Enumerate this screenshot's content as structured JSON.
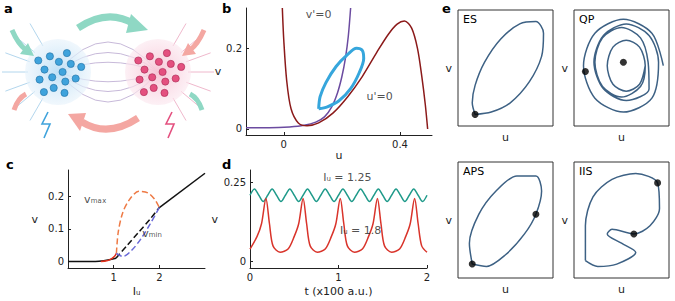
{
  "diagram": {
    "panel_label": "a"
  },
  "chart_data": [
    {
      "panel_label": "b",
      "type": "line",
      "x_label": "u",
      "y_label": "v",
      "xlim": [
        -0.13,
        0.51
      ],
      "xticks": [
        0,
        0.4
      ],
      "ylim": [
        -0.015,
        0.3
      ],
      "yticks": [
        0,
        0.2
      ],
      "series": [
        {
          "color": "#6b4ba0",
          "line_style": "solid",
          "x": [
            -0.13,
            -0.05,
            0.02,
            0.07,
            0.11,
            0.14,
            0.165,
            0.185,
            0.2,
            0.212,
            0.222,
            0.23
          ],
          "values": [
            0.003,
            0.003,
            0.005,
            0.009,
            0.017,
            0.03,
            0.055,
            0.09,
            0.13,
            0.175,
            0.23,
            0.3
          ]
        },
        {
          "color": "#8b1a1a",
          "line_style": "solid",
          "x": [
            -0.005,
            0.0,
            0.01,
            0.025,
            0.05,
            0.08,
            0.12,
            0.17,
            0.22,
            0.27,
            0.32,
            0.36,
            0.39,
            0.415,
            0.44,
            0.46,
            0.475,
            0.487,
            0.495
          ],
          "values": [
            0.3,
            0.22,
            0.12,
            0.05,
            0.015,
            0.008,
            0.015,
            0.04,
            0.08,
            0.13,
            0.19,
            0.235,
            0.26,
            0.268,
            0.25,
            0.2,
            0.13,
            0.06,
            0.0
          ]
        },
        {
          "color": "#36a6dc",
          "line_style": "solid",
          "x": [
            0.12,
            0.15,
            0.19,
            0.23,
            0.26,
            0.275,
            0.27,
            0.25,
            0.22,
            0.18,
            0.145,
            0.125,
            0.12
          ],
          "values": [
            0.05,
            0.055,
            0.07,
            0.1,
            0.14,
            0.175,
            0.195,
            0.2,
            0.185,
            0.155,
            0.115,
            0.08,
            0.05
          ]
        }
      ],
      "annotations": [
        {
          "text": "v'=0",
          "x": 0.12,
          "y": 0.285
        },
        {
          "text": "u'=0",
          "x": 0.33,
          "y": 0.08
        }
      ]
    },
    {
      "panel_label": "c",
      "type": "line",
      "x_label": "Iᵤ",
      "y_label": "v",
      "xlim": [
        0,
        3
      ],
      "xticks": [
        1,
        2
      ],
      "ylim": [
        -0.02,
        0.28
      ],
      "yticks": [
        0,
        0.1,
        0.2
      ],
      "series": [
        {
          "color": "#111111",
          "line_style": "solid",
          "x": [
            0,
            0.6,
            1.05
          ],
          "values": [
            0,
            0,
            0.01
          ]
        },
        {
          "color": "#e2311d",
          "line_style": "solid",
          "x": [
            0.72,
            0.85,
            0.95,
            1.02,
            1.06
          ],
          "values": [
            0.0,
            0.002,
            0.008,
            0.016,
            0.025
          ]
        },
        {
          "color": "#111111",
          "line_style": "dashed",
          "x": [
            1.05,
            1.3,
            1.55,
            1.8,
            2.0
          ],
          "values": [
            0.01,
            0.05,
            0.09,
            0.13,
            0.165
          ]
        },
        {
          "color": "#111111",
          "line_style": "solid",
          "x": [
            2,
            3
          ],
          "values": [
            0.165,
            0.27
          ]
        },
        {
          "color": "#ee7a45",
          "line_style": "dashed",
          "x": [
            1.06,
            1.1,
            1.2,
            1.35,
            1.55,
            1.75,
            1.9,
            2.0
          ],
          "values": [
            0.025,
            0.09,
            0.15,
            0.19,
            0.215,
            0.21,
            0.19,
            0.165
          ]
        },
        {
          "color": "#6a6ad8",
          "line_style": "dashed",
          "x": [
            1.06,
            1.2,
            1.4,
            1.6,
            1.8,
            2.0
          ],
          "values": [
            0.025,
            0.015,
            0.035,
            0.07,
            0.115,
            0.165
          ]
        }
      ],
      "annotations": [
        {
          "text": "vₘₐₓ",
          "x": 0.6,
          "y": 0.19
        },
        {
          "text": "vₘᵢₙ",
          "x": 1.84,
          "y": 0.085
        }
      ]
    },
    {
      "panel_label": "d",
      "type": "line",
      "x_label": "t (x100 a.u.)",
      "y_label": "v",
      "xlim": [
        0,
        2
      ],
      "xticks": [
        0,
        1,
        2
      ],
      "ylim": [
        -0.02,
        0.29
      ],
      "yticks": [
        0,
        0.25
      ],
      "series": [
        {
          "color": "#1f9a8a",
          "line_style": "solid",
          "x": [
            0,
            0.05,
            0.1,
            0.15,
            0.2,
            0.25,
            0.3,
            0.35,
            0.4,
            0.45,
            0.5,
            0.55,
            0.6,
            0.65,
            0.7,
            0.75,
            0.8,
            0.85,
            0.9,
            0.95,
            1,
            1.05,
            1.1,
            1.15,
            1.2,
            1.25,
            1.3,
            1.35,
            1.4,
            1.45,
            1.5,
            1.55,
            1.6,
            1.65,
            1.7,
            1.75,
            1.8,
            1.85,
            1.9,
            1.95,
            2
          ],
          "values": [
            0.21,
            0.23,
            0.21,
            0.19,
            0.21,
            0.23,
            0.21,
            0.19,
            0.21,
            0.23,
            0.21,
            0.19,
            0.21,
            0.23,
            0.21,
            0.19,
            0.21,
            0.23,
            0.21,
            0.19,
            0.21,
            0.23,
            0.21,
            0.19,
            0.21,
            0.23,
            0.21,
            0.19,
            0.21,
            0.23,
            0.21,
            0.19,
            0.21,
            0.23,
            0.21,
            0.19,
            0.21,
            0.23,
            0.21,
            0.19,
            0.21
          ]
        },
        {
          "color": "#d9342b",
          "line_style": "solid",
          "x": [
            0,
            0.08,
            0.13,
            0.18,
            0.22,
            0.26,
            0.34,
            0.43,
            0.5,
            0.55,
            0.6,
            0.64,
            0.68,
            0.76,
            0.85,
            0.92,
            0.97,
            1.02,
            1.06,
            1.1,
            1.18,
            1.27,
            1.34,
            1.39,
            1.44,
            1.48,
            1.52,
            1.6,
            1.69,
            1.76,
            1.81,
            1.86,
            1.9,
            1.94,
            2
          ],
          "values": [
            0.04,
            0.08,
            0.12,
            0.2,
            0.12,
            0.05,
            0.03,
            0.04,
            0.08,
            0.12,
            0.2,
            0.12,
            0.05,
            0.03,
            0.04,
            0.08,
            0.12,
            0.2,
            0.12,
            0.05,
            0.03,
            0.04,
            0.08,
            0.12,
            0.2,
            0.12,
            0.05,
            0.03,
            0.04,
            0.08,
            0.12,
            0.2,
            0.12,
            0.05,
            0.03
          ]
        }
      ],
      "annotations": [
        {
          "text": "Iᵤ = 1.25",
          "x": 1.1,
          "y": 0.265
        },
        {
          "text": "Iᵤ = 1.8",
          "x": 1.25,
          "y": 0.1
        }
      ]
    },
    {
      "panel_label": "e",
      "title": "ES",
      "type": "line",
      "x_label": "u",
      "y_label": "v",
      "xlim": [
        0,
        1
      ],
      "ylim": [
        0,
        1
      ],
      "tick_labels": false,
      "series": [
        {
          "color": "#3d6184",
          "line_style": "solid",
          "x": [
            0.18,
            0.35,
            0.55,
            0.75,
            0.88,
            0.9,
            0.82,
            0.65,
            0.45,
            0.28,
            0.18,
            0.15,
            0.18
          ],
          "values": [
            0.1,
            0.12,
            0.2,
            0.38,
            0.6,
            0.8,
            0.9,
            0.88,
            0.75,
            0.55,
            0.35,
            0.2,
            0.1
          ]
        },
        {
          "type": "scatter",
          "color": "#000000",
          "marker": "circle",
          "x": [
            0.18
          ],
          "values": [
            0.1
          ]
        }
      ]
    },
    {
      "title": "QP",
      "type": "line",
      "x_label": "u",
      "y_label": "v",
      "xlim": [
        0,
        1
      ],
      "ylim": [
        0,
        1
      ],
      "tick_labels": false,
      "series": [
        {
          "color": "#3d6184",
          "line_style": "solid",
          "x": [
            0.94,
            0.82,
            0.52,
            0.22,
            0.1,
            0.22,
            0.52,
            0.82,
            0.89,
            0.79,
            0.55,
            0.31,
            0.21,
            0.31,
            0.55,
            0.79,
            0.78,
            0.7,
            0.5,
            0.3,
            0.22,
            0.3,
            0.5,
            0.7,
            0.75,
            0.69,
            0.55,
            0.41,
            0.35,
            0.41,
            0.55,
            0.69,
            0.75
          ],
          "values": [
            0.52,
            0.8,
            0.92,
            0.8,
            0.52,
            0.24,
            0.12,
            0.24,
            0.55,
            0.78,
            0.88,
            0.78,
            0.55,
            0.32,
            0.22,
            0.32,
            0.55,
            0.76,
            0.85,
            0.76,
            0.55,
            0.34,
            0.25,
            0.34,
            0.52,
            0.68,
            0.74,
            0.68,
            0.52,
            0.36,
            0.3,
            0.36,
            0.52
          ]
        },
        {
          "type": "scatter",
          "color": "#000000",
          "marker": "circle",
          "x": [
            0.12,
            0.52
          ],
          "values": [
            0.47,
            0.55
          ]
        }
      ]
    },
    {
      "title": "APS",
      "type": "line",
      "x_label": "u",
      "y_label": "v",
      "xlim": [
        0,
        1
      ],
      "ylim": [
        0,
        1
      ],
      "tick_labels": false,
      "series": [
        {
          "color": "#3d6184",
          "line_style": "solid",
          "x": [
            0.15,
            0.3,
            0.5,
            0.7,
            0.82,
            0.88,
            0.82,
            0.62,
            0.4,
            0.22,
            0.12,
            0.15
          ],
          "values": [
            0.12,
            0.1,
            0.2,
            0.38,
            0.55,
            0.75,
            0.88,
            0.88,
            0.75,
            0.55,
            0.3,
            0.12
          ]
        },
        {
          "type": "scatter",
          "color": "#000000",
          "marker": "circle",
          "x": [
            0.15,
            0.82
          ],
          "values": [
            0.12,
            0.55
          ]
        }
      ]
    },
    {
      "title": "IIS",
      "type": "line",
      "x_label": "u",
      "y_label": "v",
      "xlim": [
        0,
        1
      ],
      "ylim": [
        0,
        1
      ],
      "tick_labels": false,
      "series": [
        {
          "color": "#3d6184",
          "line_style": "solid",
          "x": [
            0.12,
            0.12,
            0.2,
            0.4,
            0.65,
            0.88,
            0.9,
            0.8,
            0.63,
            0.4,
            0.35,
            0.5,
            0.65,
            0.45,
            0.25,
            0.12
          ],
          "values": [
            0.15,
            0.45,
            0.7,
            0.85,
            0.9,
            0.82,
            0.6,
            0.45,
            0.38,
            0.42,
            0.38,
            0.3,
            0.22,
            0.12,
            0.1,
            0.15
          ]
        },
        {
          "type": "scatter",
          "color": "#000000",
          "marker": "circle",
          "x": [
            0.88,
            0.63
          ],
          "values": [
            0.82,
            0.38
          ]
        }
      ]
    }
  ]
}
